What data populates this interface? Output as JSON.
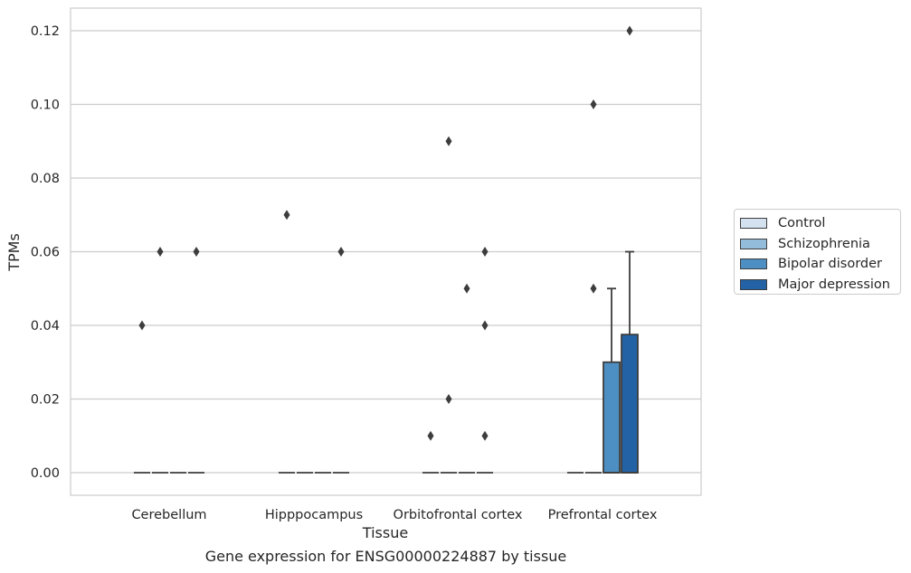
{
  "chart_data": {
    "type": "boxplot",
    "xlabel": "Tissue",
    "ylabel": "TPMs",
    "ylim": [
      -0.006,
      0.126
    ],
    "yticks": [
      0.0,
      0.02,
      0.04,
      0.06,
      0.08,
      0.1,
      0.12
    ],
    "ytick_labels": [
      "0.00",
      "0.02",
      "0.04",
      "0.06",
      "0.08",
      "0.10",
      "0.12"
    ],
    "grid": true,
    "legend_position": "right",
    "categories": [
      "Cerebellum",
      "Hipppocampus",
      "Orbitofrontal cortex",
      "Prefrontal cortex"
    ],
    "series": [
      {
        "name": "Control",
        "color": "#d4e1ef",
        "boxes": [
          {
            "q1": 0,
            "median": 0,
            "q3": 0,
            "whisker_low": 0,
            "whisker_high": 0,
            "outliers": [
              0.04
            ]
          },
          {
            "q1": 0,
            "median": 0,
            "q3": 0,
            "whisker_low": 0,
            "whisker_high": 0,
            "outliers": [
              0.07
            ]
          },
          {
            "q1": 0,
            "median": 0,
            "q3": 0,
            "whisker_low": 0,
            "whisker_high": 0,
            "outliers": [
              0.01
            ]
          },
          {
            "q1": 0,
            "median": 0,
            "q3": 0,
            "whisker_low": 0,
            "whisker_high": 0,
            "outliers": []
          }
        ]
      },
      {
        "name": "Schizophrenia",
        "color": "#93bcdb",
        "boxes": [
          {
            "q1": 0,
            "median": 0,
            "q3": 0,
            "whisker_low": 0,
            "whisker_high": 0,
            "outliers": [
              0.06
            ]
          },
          {
            "q1": 0,
            "median": 0,
            "q3": 0,
            "whisker_low": 0,
            "whisker_high": 0,
            "outliers": []
          },
          {
            "q1": 0,
            "median": 0,
            "q3": 0,
            "whisker_low": 0,
            "whisker_high": 0,
            "outliers": [
              0.09,
              0.02
            ]
          },
          {
            "q1": 0,
            "median": 0,
            "q3": 0,
            "whisker_low": 0,
            "whisker_high": 0,
            "outliers": [
              0.1,
              0.05
            ]
          }
        ]
      },
      {
        "name": "Bipolar disorder",
        "color": "#4e8fc3",
        "boxes": [
          {
            "q1": 0,
            "median": 0,
            "q3": 0,
            "whisker_low": 0,
            "whisker_high": 0,
            "outliers": []
          },
          {
            "q1": 0,
            "median": 0,
            "q3": 0,
            "whisker_low": 0,
            "whisker_high": 0,
            "outliers": []
          },
          {
            "q1": 0,
            "median": 0,
            "q3": 0,
            "whisker_low": 0,
            "whisker_high": 0,
            "outliers": [
              0.05
            ]
          },
          {
            "q1": 0,
            "median": 0,
            "q3": 0.03,
            "whisker_low": 0,
            "whisker_high": 0.05,
            "outliers": []
          }
        ]
      },
      {
        "name": "Major depression",
        "color": "#2362a5",
        "boxes": [
          {
            "q1": 0,
            "median": 0,
            "q3": 0,
            "whisker_low": 0,
            "whisker_high": 0,
            "outliers": [
              0.06
            ]
          },
          {
            "q1": 0,
            "median": 0,
            "q3": 0,
            "whisker_low": 0,
            "whisker_high": 0,
            "outliers": [
              0.06
            ]
          },
          {
            "q1": 0,
            "median": 0,
            "q3": 0,
            "whisker_low": 0,
            "whisker_high": 0,
            "outliers": [
              0.06,
              0.04,
              0.01
            ]
          },
          {
            "q1": 0,
            "median": 0,
            "q3": 0.0375,
            "whisker_low": 0,
            "whisker_high": 0.06,
            "outliers": [
              0.12
            ]
          }
        ]
      }
    ],
    "caption": "Gene expression for ENSG00000224887 by tissue"
  }
}
